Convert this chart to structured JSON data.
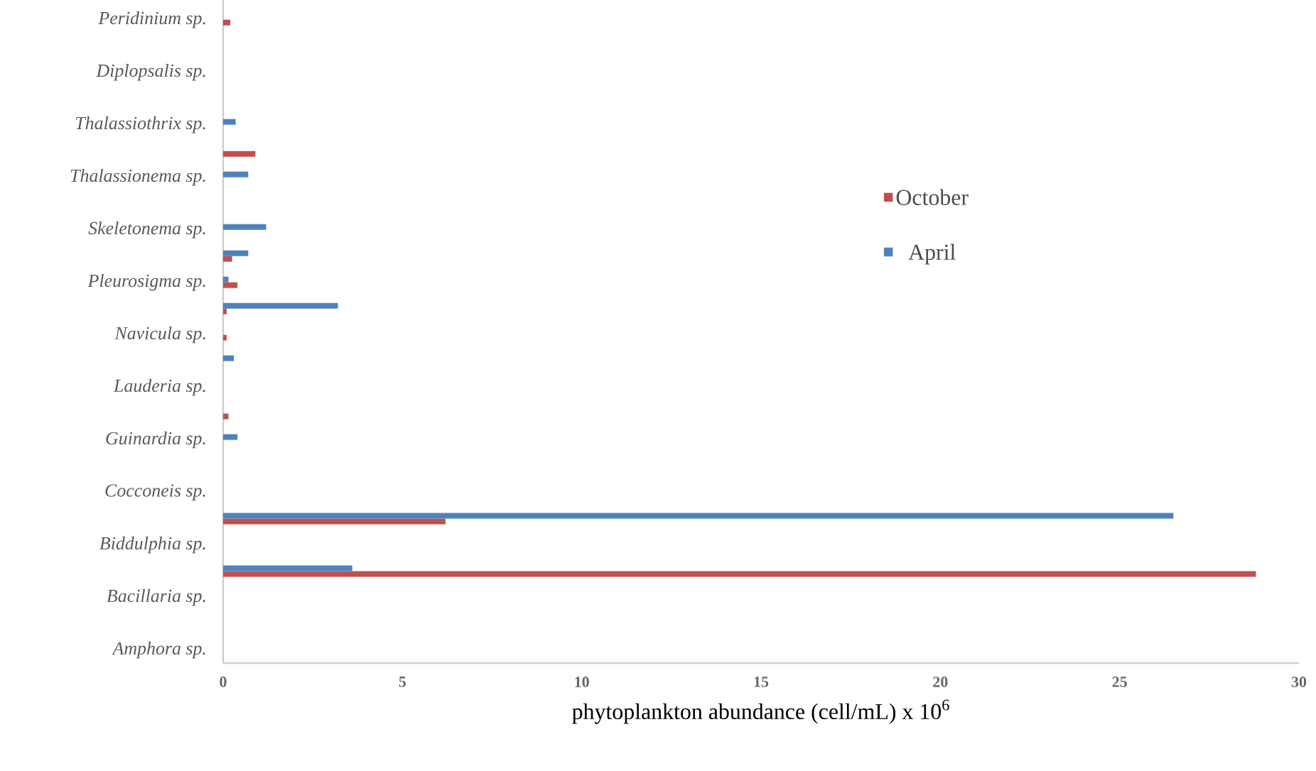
{
  "chart_data": {
    "type": "bar",
    "orientation": "horizontal",
    "xlabel": "phytoplankton abundance (cell/mL) x 10$^{6}$",
    "categories": [
      "Peridinium sp.",
      null,
      "Diplopsalis sp.",
      null,
      "Thalassiothrix sp.",
      null,
      "Thalassionema sp.",
      null,
      "Skeletonema sp.",
      null,
      "Pleurosigma sp.",
      null,
      "Navicula sp.",
      null,
      "Lauderia sp.",
      null,
      "Guinardia sp.",
      null,
      "Cocconeis sp.",
      null,
      "Biddulphia sp.",
      null,
      "Bacillaria sp.",
      null,
      "Amphora sp."
    ],
    "series": [
      {
        "name": "October",
        "color": "#c0504d",
        "values": [
          0.2,
          null,
          null,
          null,
          null,
          0.9,
          null,
          null,
          null,
          0.25,
          0.4,
          0.1,
          0.1,
          null,
          null,
          0.15,
          null,
          null,
          null,
          6.2,
          null,
          28.8,
          null,
          null,
          null
        ]
      },
      {
        "name": "April",
        "color": "#4f81bd",
        "values": [
          null,
          null,
          null,
          null,
          0.35,
          null,
          0.7,
          null,
          1.2,
          0.7,
          0.15,
          3.2,
          null,
          0.3,
          null,
          null,
          0.4,
          null,
          null,
          26.5,
          null,
          3.6,
          null,
          null,
          null
        ]
      }
    ],
    "xlim": [
      0,
      30
    ],
    "xticks": [
      0,
      5,
      10,
      15,
      20,
      25,
      30
    ],
    "grid": false,
    "legend": "right"
  }
}
